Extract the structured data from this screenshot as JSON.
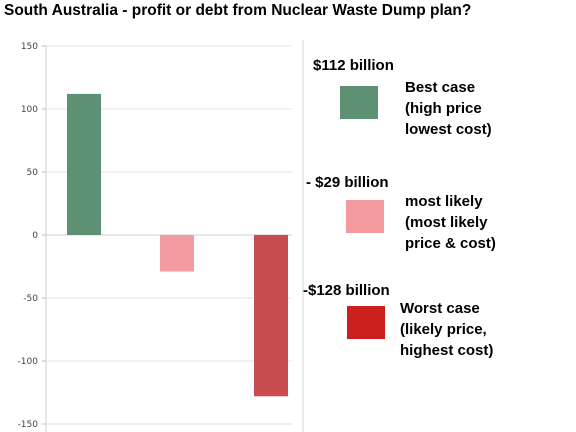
{
  "chart_data": {
    "type": "bar",
    "title": "South Australia - profit or debt from Nuclear Waste Dump plan?",
    "xlabel": "",
    "ylabel": "",
    "ylim": [
      -150,
      150
    ],
    "yticks": [
      -150,
      -100,
      -50,
      0,
      50,
      100,
      150
    ],
    "grid": true,
    "legend_position": "right",
    "categories": [
      "Best case",
      "most likely",
      "Worst case"
    ],
    "values": [
      112,
      -29,
      -128
    ],
    "colors": [
      "#5e9174",
      "#f49ba0",
      "#c94c50"
    ]
  },
  "legend": [
    {
      "amount": "$112 billion",
      "description": "Best  case\n(high price\nlowest cost)",
      "swatch_color": "#5e9174"
    },
    {
      "amount": "- $29 billion",
      "description": "most likely\n(most likely\nprice & cost)",
      "swatch_color": "#f49ba0"
    },
    {
      "amount": "-$128 billion",
      "description": "Worst case\n(likely price,\nhighest cost)",
      "swatch_color": "#cc1f1f"
    }
  ]
}
